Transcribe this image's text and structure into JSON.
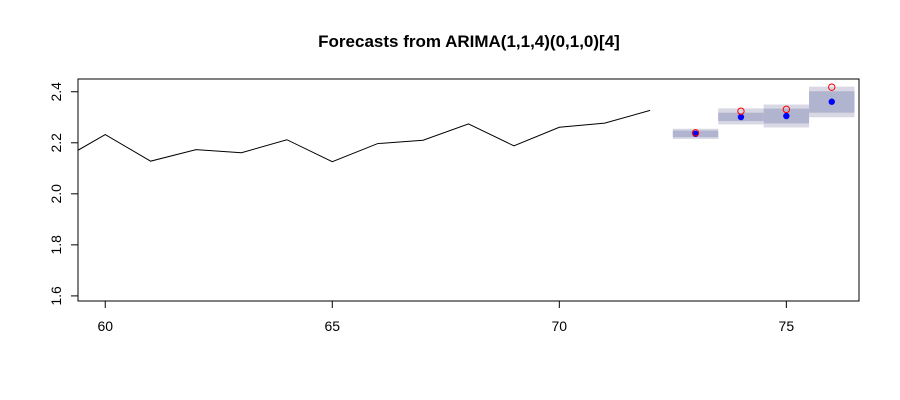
{
  "chart_data": {
    "type": "line",
    "title": "Forecasts from ARIMA(1,1,4)(0,1,0)[4]",
    "xlabel": "",
    "ylabel": "",
    "xlim": [
      59.4,
      76.6
    ],
    "ylim": [
      1.58,
      2.45
    ],
    "x_ticks": [
      60,
      65,
      70,
      75
    ],
    "x_tick_labels": [
      "60",
      "65",
      "70",
      "75"
    ],
    "y_ticks": [
      1.6,
      1.8,
      2.0,
      2.2,
      2.4
    ],
    "y_tick_labels": [
      "1.6",
      "1.8",
      "2.0",
      "2.2",
      "2.4"
    ],
    "grid": false,
    "legend": "none",
    "series": [
      {
        "type": "line",
        "color": "#000000",
        "x": [
          59,
          60,
          61,
          62,
          63,
          64,
          65,
          66,
          67,
          68,
          69,
          70,
          71,
          72
        ],
        "values": [
          2.13,
          2.232,
          2.128,
          2.173,
          2.161,
          2.212,
          2.126,
          2.197,
          2.21,
          2.274,
          2.188,
          2.261,
          2.277,
          2.327
        ]
      },
      {
        "type": "point",
        "color": "#0000ff",
        "x": [
          73,
          74,
          75,
          76
        ],
        "values": [
          2.235,
          2.301,
          2.305,
          2.361
        ]
      },
      {
        "type": "point-open",
        "color": "#ff0000",
        "x": [
          73,
          74,
          75,
          76
        ],
        "values": [
          2.239,
          2.324,
          2.331,
          2.418
        ]
      }
    ],
    "intervals": {
      "x": [
        73,
        74,
        75,
        76
      ],
      "lower95": [
        2.215,
        2.272,
        2.26,
        2.3
      ],
      "upper95": [
        2.255,
        2.335,
        2.35,
        2.42
      ],
      "lower80": [
        2.222,
        2.285,
        2.276,
        2.318
      ],
      "upper80": [
        2.248,
        2.318,
        2.334,
        2.402
      ],
      "color95": "#d8d8e4",
      "color80": "#b0b4ce"
    }
  }
}
